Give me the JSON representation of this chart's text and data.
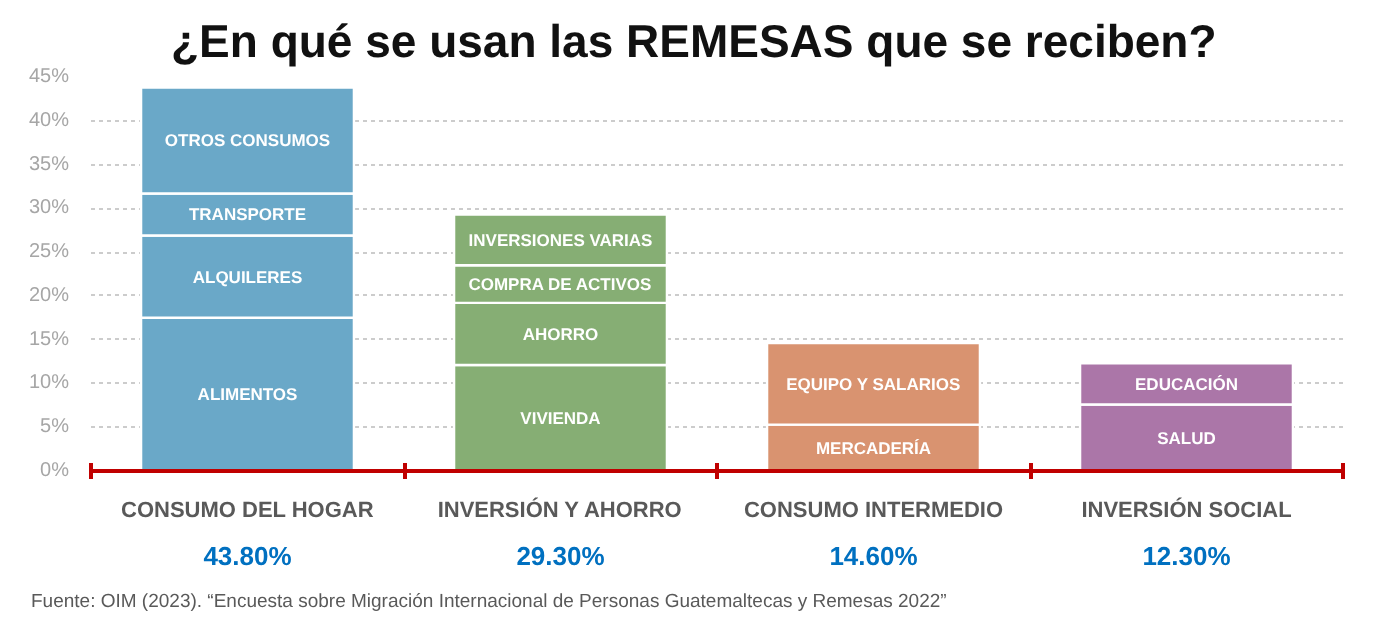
{
  "chart_data": {
    "type": "bar",
    "stacked": true,
    "title": "¿En qué se usan las REMESAS que se reciben?",
    "categories": [
      "CONSUMO DEL HOGAR",
      "INVERSIÓN Y AHORRO",
      "CONSUMO INTERMEDIO",
      "INVERSIÓN SOCIAL"
    ],
    "series": [
      {
        "name": "ALIMENTOS",
        "color": "#6aa8c8",
        "values": [
          17.5,
          null,
          null,
          null
        ]
      },
      {
        "name": "ALQUILERES",
        "color": "#6aa8c8",
        "values": [
          9.4,
          null,
          null,
          null
        ]
      },
      {
        "name": "TRANSPORTE",
        "color": "#6aa8c8",
        "values": [
          4.8,
          null,
          null,
          null
        ]
      },
      {
        "name": "OTROS CONSUMOS",
        "color": "#6aa8c8",
        "values": [
          12.1,
          null,
          null,
          null
        ]
      },
      {
        "name": "VIVIENDA",
        "color": "#86ae74",
        "values": [
          null,
          12.1,
          null,
          null
        ]
      },
      {
        "name": "AHORRO",
        "color": "#86ae74",
        "values": [
          null,
          7.1,
          null,
          null
        ]
      },
      {
        "name": "COMPRA DE ACTIVOS",
        "color": "#86ae74",
        "values": [
          null,
          4.3,
          null,
          null
        ]
      },
      {
        "name": "INVERSIONES VARIAS",
        "color": "#86ae74",
        "values": [
          null,
          5.8,
          null,
          null
        ]
      },
      {
        "name": "MERCADERÍA",
        "color": "#d99370",
        "values": [
          null,
          null,
          5.3,
          null
        ]
      },
      {
        "name": "EQUIPO Y SALARIOS",
        "color": "#d99370",
        "values": [
          null,
          null,
          9.3,
          null
        ]
      },
      {
        "name": "SALUD",
        "color": "#ab76a8",
        "values": [
          null,
          null,
          null,
          7.6
        ]
      },
      {
        "name": "EDUCACIÓN",
        "color": "#ab76a8",
        "values": [
          null,
          null,
          null,
          4.7
        ]
      }
    ],
    "totals": [
      "43.80%",
      "29.30%",
      "14.60%",
      "12.30%"
    ],
    "ylim": [
      0,
      45
    ],
    "yticks": [
      {
        "value": 0,
        "label": "0%"
      },
      {
        "value": 5,
        "label": "5%"
      },
      {
        "value": 10,
        "label": "10%"
      },
      {
        "value": 15,
        "label": "15%"
      },
      {
        "value": 20,
        "label": "20%"
      },
      {
        "value": 25,
        "label": "25%"
      },
      {
        "value": 30,
        "label": "30%"
      },
      {
        "value": 35,
        "label": "35%"
      },
      {
        "value": 40,
        "label": "40%"
      },
      {
        "value": 45,
        "label": "45%"
      }
    ],
    "grid": "y",
    "annotations": [
      "Fuente: OIM (2023). “Encuesta sobre Migración Internacional de Personas Guatemaltecas y Remesas 2022”"
    ]
  }
}
